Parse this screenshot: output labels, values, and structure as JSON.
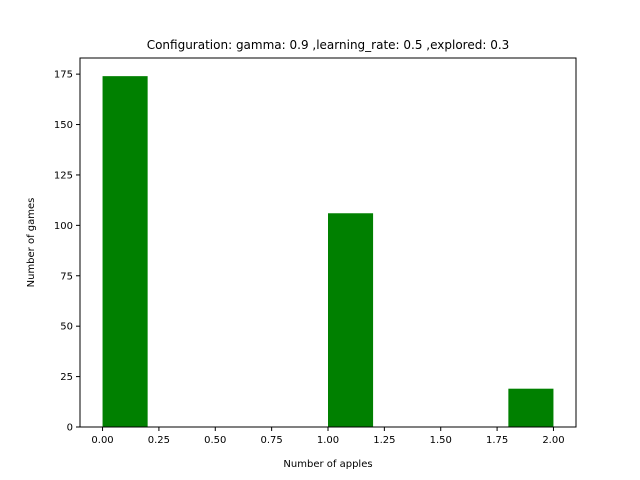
{
  "chart_data": {
    "type": "bar",
    "title": "Configuration: gamma: 0.9 ,learning_rate: 0.5 ,explored: 0.3",
    "xlabel": "Number of apples",
    "ylabel": "Number of games",
    "xlim": [
      -0.1,
      2.1
    ],
    "ylim": [
      0,
      183
    ],
    "bar_color": "#008000",
    "bars": [
      {
        "x0": 0.0,
        "x1": 0.2,
        "value": 174
      },
      {
        "x0": 1.0,
        "x1": 1.2,
        "value": 106
      },
      {
        "x0": 1.8,
        "x1": 2.0,
        "value": 19
      }
    ],
    "x_ticks": [
      {
        "value": 0.0,
        "label": "0.00"
      },
      {
        "value": 0.25,
        "label": "0.25"
      },
      {
        "value": 0.5,
        "label": "0.50"
      },
      {
        "value": 0.75,
        "label": "0.75"
      },
      {
        "value": 1.0,
        "label": "1.00"
      },
      {
        "value": 1.25,
        "label": "1.25"
      },
      {
        "value": 1.5,
        "label": "1.50"
      },
      {
        "value": 1.75,
        "label": "1.75"
      },
      {
        "value": 2.0,
        "label": "2.00"
      }
    ],
    "y_ticks": [
      {
        "value": 0,
        "label": "0"
      },
      {
        "value": 25,
        "label": "25"
      },
      {
        "value": 50,
        "label": "50"
      },
      {
        "value": 75,
        "label": "75"
      },
      {
        "value": 100,
        "label": "100"
      },
      {
        "value": 125,
        "label": "125"
      },
      {
        "value": 150,
        "label": "150"
      },
      {
        "value": 175,
        "label": "175"
      }
    ],
    "grid": false,
    "legend": "none"
  }
}
